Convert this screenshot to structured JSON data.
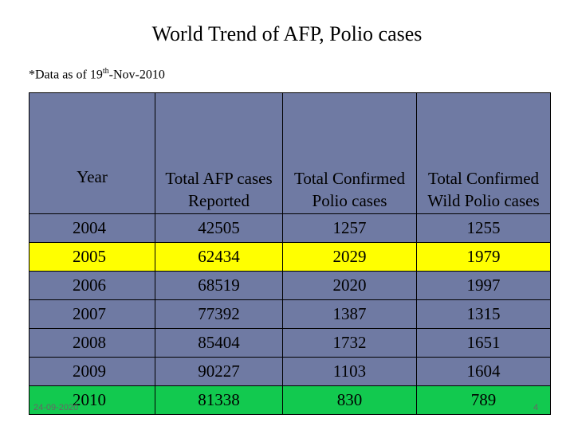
{
  "title": "World Trend of AFP, Polio cases",
  "note": {
    "prefix": "*Data as of 19",
    "sup": "th",
    "suffix": "-Nov-2010"
  },
  "table": {
    "headers": [
      "Year",
      "Total AFP cases Reported",
      "Total Confirmed Polio cases",
      "Total Confirmed Wild Polio cases"
    ],
    "rows": [
      [
        "2004",
        "42505",
        "1257",
        "1255"
      ],
      [
        "2005",
        "62434",
        "2029",
        "1979"
      ],
      [
        "2006",
        "68519",
        "2020",
        "1997"
      ],
      [
        "2007",
        "77392",
        "1387",
        "1315"
      ],
      [
        "2008",
        "85404",
        "1732",
        "1651"
      ],
      [
        "2009",
        "90227",
        "1103",
        "1604"
      ],
      [
        "2010",
        "81338",
        "830",
        "789"
      ]
    ],
    "highlight_colors": {
      "2005": "#ffff00",
      "2010": "#12c94f"
    },
    "base_color": "#6f7aa3"
  },
  "footer": {
    "date": "24-09-2020",
    "page": "4"
  }
}
